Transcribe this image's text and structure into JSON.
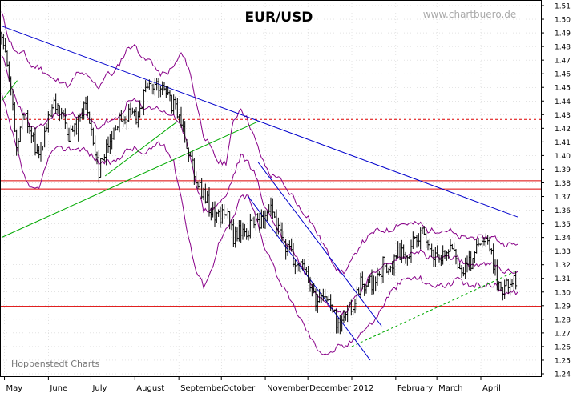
{
  "chart_data": {
    "type": "ohlc",
    "title": "EUR/USD",
    "watermark": "www.chartbuero.de",
    "credit": "Hoppenstedt Charts",
    "ylim": [
      1.24,
      1.51
    ],
    "y_ticks": [
      1.24,
      1.25,
      1.26,
      1.27,
      1.28,
      1.29,
      1.3,
      1.31,
      1.32,
      1.33,
      1.34,
      1.35,
      1.36,
      1.37,
      1.38,
      1.39,
      1.4,
      1.41,
      1.42,
      1.43,
      1.44,
      1.45,
      1.46,
      1.47,
      1.48,
      1.49,
      1.5,
      1.51
    ],
    "x_labels": [
      "May",
      "June",
      "July",
      "August",
      "September",
      "October",
      "November",
      "December",
      "2012",
      "February",
      "March",
      "April"
    ],
    "colors": {
      "bars": "#000000",
      "bands": "#880088",
      "blue_trend": "#0000cc",
      "green_trend": "#00aa00",
      "horizontal": "#dd0000",
      "grid": "#c8c8c8"
    },
    "horizontal_lines": [
      {
        "value": 1.2895,
        "style": "solid"
      },
      {
        "value": 1.3755,
        "style": "solid"
      },
      {
        "value": 1.3815,
        "style": "solid"
      },
      {
        "value": 1.4265,
        "style": "dashed"
      }
    ],
    "closes": [
      1.49,
      1.455,
      1.41,
      1.43,
      1.415,
      1.4,
      1.42,
      1.435,
      1.43,
      1.415,
      1.42,
      1.44,
      1.42,
      1.39,
      1.405,
      1.42,
      1.425,
      1.43,
      1.43,
      1.445,
      1.45,
      1.45,
      1.445,
      1.435,
      1.425,
      1.405,
      1.385,
      1.37,
      1.36,
      1.355,
      1.36,
      1.34,
      1.345,
      1.345,
      1.355,
      1.35,
      1.36,
      1.345,
      1.335,
      1.325,
      1.32,
      1.31,
      1.295,
      1.3,
      1.29,
      1.275,
      1.285,
      1.29,
      1.305,
      1.31,
      1.305,
      1.32,
      1.315,
      1.33,
      1.325,
      1.335,
      1.345,
      1.33,
      1.325,
      1.325,
      1.33,
      1.32,
      1.315,
      1.325,
      1.335,
      1.335,
      1.315,
      1.3,
      1.31,
      1.31
    ],
    "upper_band": [
      1.505,
      1.485,
      1.475,
      1.475,
      1.465,
      1.465,
      1.46,
      1.455,
      1.455,
      1.45,
      1.46,
      1.46,
      1.455,
      1.45,
      1.46,
      1.46,
      1.47,
      1.48,
      1.48,
      1.47,
      1.47,
      1.46,
      1.46,
      1.465,
      1.475,
      1.465,
      1.44,
      1.415,
      1.405,
      1.395,
      1.395,
      1.425,
      1.435,
      1.425,
      1.41,
      1.395,
      1.385,
      1.385,
      1.375,
      1.37,
      1.36,
      1.355,
      1.345,
      1.335,
      1.325,
      1.315,
      1.315,
      1.325,
      1.335,
      1.34,
      1.345,
      1.345,
      1.345,
      1.35,
      1.35,
      1.35,
      1.35,
      1.345,
      1.345,
      1.345,
      1.345,
      1.34,
      1.34,
      1.34,
      1.34,
      1.34,
      1.34,
      1.335,
      1.335,
      1.335
    ],
    "lower_band": [
      1.445,
      1.425,
      1.405,
      1.385,
      1.375,
      1.375,
      1.395,
      1.405,
      1.405,
      1.405,
      1.405,
      1.405,
      1.4,
      1.395,
      1.395,
      1.395,
      1.4,
      1.405,
      1.405,
      1.4,
      1.405,
      1.41,
      1.405,
      1.395,
      1.37,
      1.34,
      1.315,
      1.305,
      1.315,
      1.335,
      1.345,
      1.355,
      1.37,
      1.37,
      1.355,
      1.335,
      1.325,
      1.31,
      1.3,
      1.29,
      1.28,
      1.27,
      1.26,
      1.255,
      1.255,
      1.26,
      1.26,
      1.265,
      1.27,
      1.275,
      1.28,
      1.29,
      1.3,
      1.305,
      1.31,
      1.31,
      1.31,
      1.305,
      1.305,
      1.305,
      1.305,
      1.31,
      1.305,
      1.305,
      1.305,
      1.305,
      1.305,
      1.3,
      1.3,
      1.3
    ],
    "middle_band": [
      1.475,
      1.455,
      1.44,
      1.43,
      1.42,
      1.42,
      1.425,
      1.43,
      1.43,
      1.43,
      1.43,
      1.43,
      1.425,
      1.42,
      1.425,
      1.425,
      1.43,
      1.44,
      1.44,
      1.435,
      1.435,
      1.435,
      1.43,
      1.43,
      1.42,
      1.405,
      1.38,
      1.36,
      1.36,
      1.365,
      1.37,
      1.385,
      1.4,
      1.395,
      1.385,
      1.365,
      1.355,
      1.345,
      1.335,
      1.33,
      1.32,
      1.31,
      1.3,
      1.295,
      1.29,
      1.285,
      1.285,
      1.295,
      1.3,
      1.31,
      1.315,
      1.32,
      1.32,
      1.325,
      1.325,
      1.33,
      1.33,
      1.325,
      1.325,
      1.325,
      1.325,
      1.325,
      1.32,
      1.32,
      1.32,
      1.32,
      1.32,
      1.315,
      1.315,
      1.315
    ],
    "trendlines": [
      {
        "color": "blue",
        "style": "solid",
        "from": {
          "x": "2011-04-29",
          "y": 1.495
        },
        "to": {
          "x": "2012-04-27",
          "y": 1.355
        }
      },
      {
        "color": "green",
        "style": "solid",
        "from": {
          "x": "2011-04-29",
          "y": 1.34
        },
        "to": {
          "x": "2011-10-27",
          "y": 1.425
        }
      },
      {
        "color": "green",
        "style": "solid",
        "from": {
          "x": "2011-04-29",
          "y": 1.44
        },
        "to": {
          "x": "2011-05-10",
          "y": 1.455
        }
      },
      {
        "color": "green",
        "style": "solid",
        "from": {
          "x": "2011-07-11",
          "y": 1.385
        },
        "to": {
          "x": "2011-08-31",
          "y": 1.425
        }
      },
      {
        "color": "green",
        "style": "dashed",
        "from": {
          "x": "2012-01-01",
          "y": 1.26
        },
        "to": {
          "x": "2012-04-25",
          "y": 1.315
        }
      },
      {
        "color": "blue",
        "style": "solid",
        "from": {
          "x": "2011-10-20",
          "y": 1.37
        },
        "to": {
          "x": "2012-01-14",
          "y": 1.25
        }
      },
      {
        "color": "blue",
        "style": "solid",
        "from": {
          "x": "2011-10-27",
          "y": 1.395
        },
        "to": {
          "x": "2012-01-22",
          "y": 1.275
        }
      }
    ]
  }
}
